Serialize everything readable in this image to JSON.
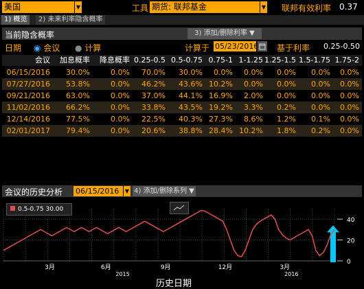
{
  "topbar": {
    "country": "美国",
    "tool_label": "工具",
    "tool_value": "期货: 联邦基金",
    "fed_label": "联邦有效利率",
    "fed_value": "0.37"
  },
  "tabs": [
    {
      "label": "1) 概览"
    },
    {
      "label": "2) 未来利率隐含概率"
    }
  ],
  "panel": {
    "title": "当前隐含概率",
    "add_remove": "3) 添加/删除利率"
  },
  "options": {
    "date_label": "日期",
    "radio_meeting": "会议",
    "radio_calc": "计算",
    "calc_label": "计算于",
    "calc_date": "05/23/2016",
    "base_rate_label": "基于利率",
    "base_rate_value": "0.25-0.50"
  },
  "table": {
    "headers": [
      "会议",
      "加息概率",
      "降息概率",
      "0.25-0.5",
      "0.5-0.75",
      "0.75-1",
      "1-1.25",
      "1.25-1.5",
      "1.5-1.75",
      "1.75-2"
    ],
    "rows": [
      [
        "06/15/2016",
        "30.0%",
        "0.0%",
        "70.0%",
        "30.0%",
        "0.0%",
        "0.0%",
        "0.0%",
        "0.0%",
        "0.0%"
      ],
      [
        "07/27/2016",
        "53.8%",
        "0.0%",
        "46.2%",
        "43.6%",
        "10.2%",
        "0.0%",
        "0.0%",
        "0.0%",
        "0.0%"
      ],
      [
        "09/21/2016",
        "63.0%",
        "0.0%",
        "37.0%",
        "44.1%",
        "16.9%",
        "2.0%",
        "0.0%",
        "0.0%",
        "0.0%"
      ],
      [
        "11/02/2016",
        "66.2%",
        "0.0%",
        "33.8%",
        "43.5%",
        "19.2%",
        "3.3%",
        "0.2%",
        "0.0%",
        "0.0%"
      ],
      [
        "12/14/2016",
        "77.5%",
        "0.0%",
        "22.5%",
        "40.3%",
        "27.3%",
        "8.6%",
        "1.2%",
        "0.1%",
        "0.0%"
      ],
      [
        "02/01/2017",
        "79.4%",
        "0.0%",
        "20.6%",
        "38.8%",
        "28.4%",
        "10.2%",
        "1.8%",
        "0.2%",
        "0.0%"
      ]
    ]
  },
  "history": {
    "title": "会议的历史分析",
    "date": "06/15/2016",
    "add_remove": "4) 添加/删除系列"
  },
  "chart_data": {
    "type": "line",
    "series": [
      {
        "name": "0.5-0.75",
        "last_value": "30.00",
        "color": "#e05050",
        "values": [
          10,
          12,
          14,
          16,
          18,
          20,
          22,
          24,
          26,
          28,
          30,
          28,
          26,
          24,
          26,
          28,
          30,
          32,
          30,
          28,
          30,
          32,
          30,
          28,
          30,
          32,
          30,
          28,
          26,
          28,
          30,
          32,
          30,
          28,
          30,
          32,
          34,
          36,
          38,
          36,
          34,
          32,
          30,
          28,
          30,
          32,
          34,
          36,
          38,
          40,
          42,
          44,
          46,
          48,
          48,
          46,
          44,
          42,
          40,
          38,
          30,
          20,
          10,
          5,
          4,
          10,
          20,
          30,
          35,
          38,
          40,
          42,
          44,
          40,
          30,
          25,
          22,
          20,
          22,
          24,
          26,
          28,
          30,
          24,
          10,
          5,
          8,
          15,
          25,
          30
        ]
      }
    ],
    "x_labels": [
      "3月",
      "6月",
      "9月",
      "12月",
      "3月"
    ],
    "x_year_labels": [
      "2015",
      "2016"
    ],
    "xlabel": "历史日期",
    "yticks": [
      0,
      20,
      40
    ],
    "ylim": [
      0,
      50
    ]
  }
}
